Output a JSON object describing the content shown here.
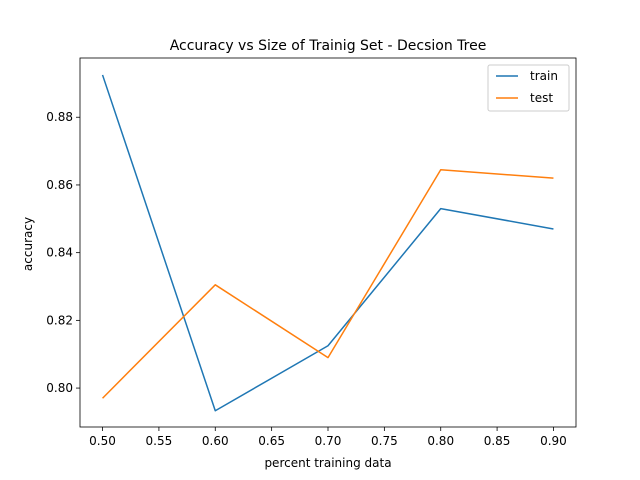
{
  "chart_data": {
    "type": "line",
    "title": "Accuracy vs Size of Trainig Set - Decsion Tree",
    "xlabel": "percent training data",
    "ylabel": "accuracy",
    "x": [
      0.5,
      0.6,
      0.7,
      0.8,
      0.9
    ],
    "series": [
      {
        "name": "train",
        "color": "#1f77b4",
        "values": [
          0.8925,
          0.7933,
          0.8125,
          0.853,
          0.847
        ]
      },
      {
        "name": "test",
        "color": "#ff7f0e",
        "values": [
          0.797,
          0.8305,
          0.809,
          0.8645,
          0.862
        ]
      }
    ],
    "xlim": [
      0.48,
      0.92
    ],
    "ylim": [
      0.7885,
      0.8975
    ],
    "xticks": [
      "0.50",
      "0.55",
      "0.60",
      "0.65",
      "0.70",
      "0.75",
      "0.80",
      "0.85",
      "0.90"
    ],
    "yticks": [
      "0.80",
      "0.82",
      "0.84",
      "0.86",
      "0.88"
    ],
    "grid": false,
    "legend_position": "top-right"
  }
}
